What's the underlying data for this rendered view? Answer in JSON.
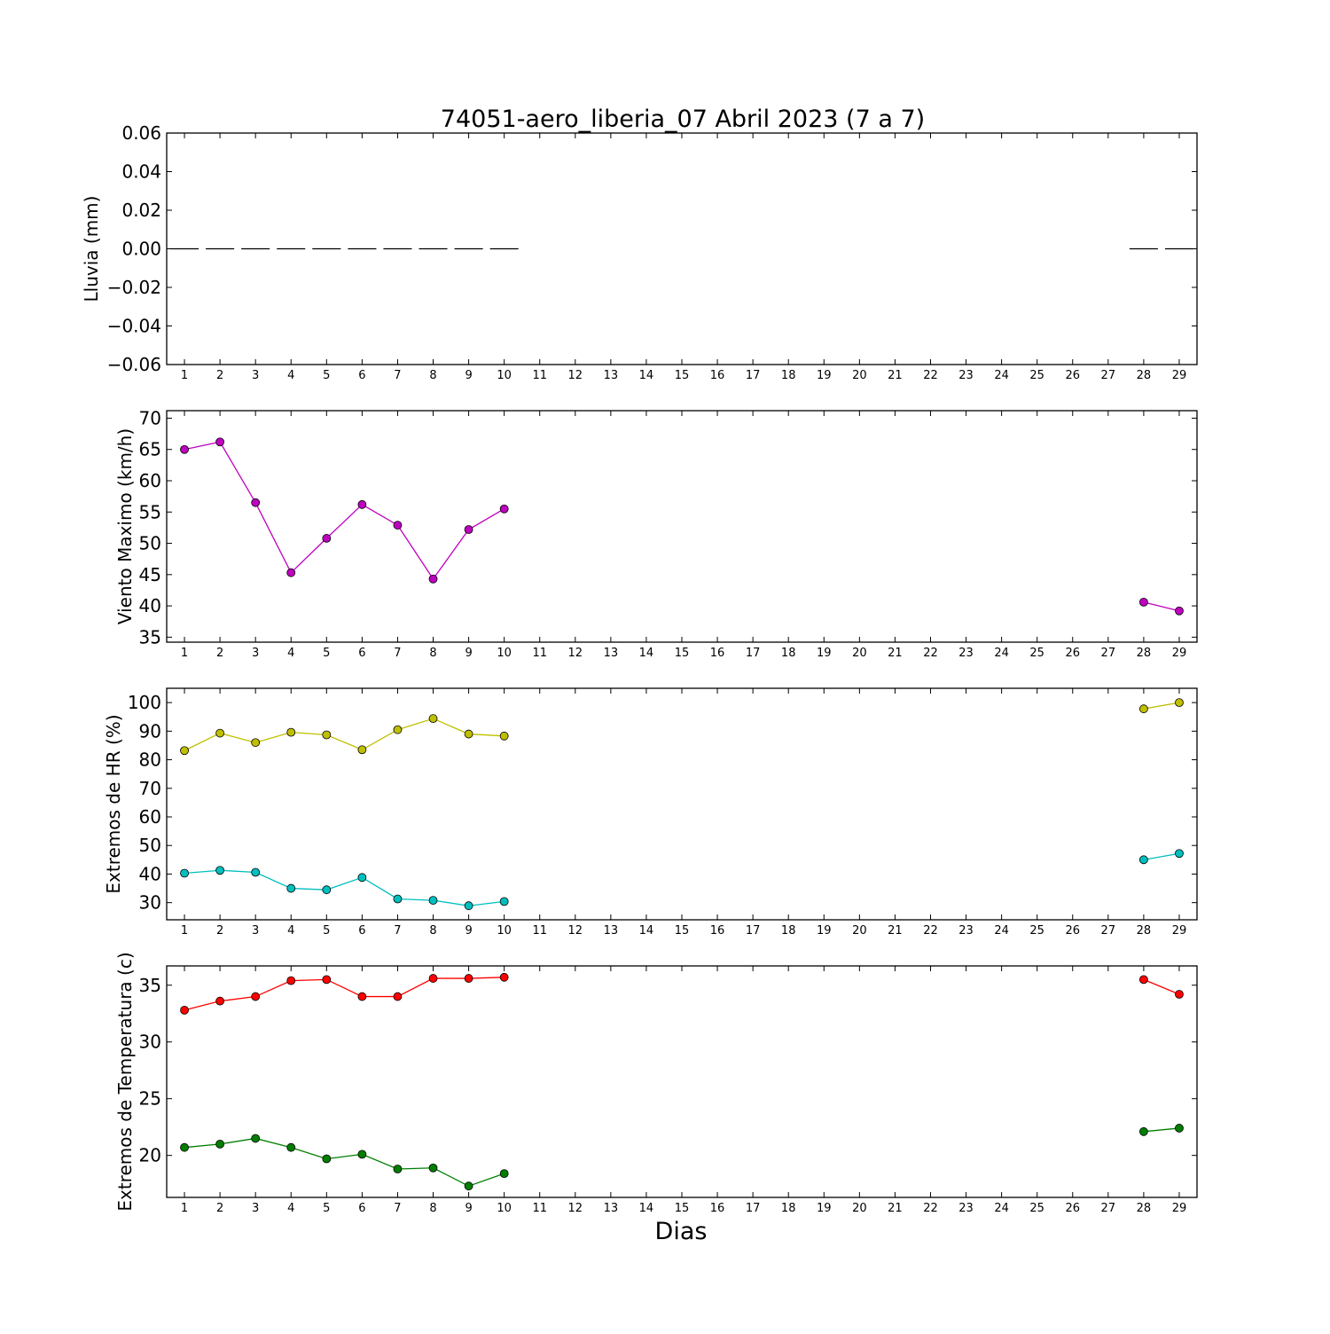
{
  "figure": {
    "title": "74051-aero_liberia_07 Abril 2023  (7 a 7)",
    "xlabel": "Dias"
  },
  "chart_data": [
    {
      "type": "bar",
      "name": "lluvia",
      "ylabel": "Lluvia (mm)",
      "ylim": [
        -0.06,
        0.06
      ],
      "yticks": [
        0.06,
        0.04,
        0.02,
        0.0,
        -0.02,
        -0.04,
        -0.06
      ],
      "ytick_labels": [
        "0.06",
        "0.04",
        "0.02",
        "0.00",
        "−0.02",
        "−0.04",
        "−0.06"
      ],
      "xlim": [
        0.5,
        29.5
      ],
      "xticks": [
        1,
        2,
        3,
        4,
        5,
        6,
        7,
        8,
        9,
        10,
        11,
        12,
        13,
        14,
        15,
        16,
        17,
        18,
        19,
        20,
        21,
        22,
        23,
        24,
        25,
        26,
        27,
        28,
        29
      ],
      "bar_width": 0.8,
      "series": [
        {
          "color": "#000000",
          "x": [
            1,
            2,
            3,
            4,
            5,
            6,
            7,
            8,
            9,
            10,
            28,
            29
          ],
          "values": [
            0,
            0,
            0,
            0,
            0,
            0,
            0,
            0,
            0,
            0,
            0,
            0
          ]
        }
      ]
    },
    {
      "type": "line",
      "name": "viento",
      "ylabel": "Viento Maximo (km/h)",
      "ylim": [
        34.2,
        71.2
      ],
      "yticks": [
        70,
        65,
        60,
        55,
        50,
        45,
        40,
        35
      ],
      "ytick_labels": [
        "70",
        "65",
        "60",
        "55",
        "50",
        "45",
        "40",
        "35"
      ],
      "xlim": [
        0.5,
        29.5
      ],
      "xticks": [
        1,
        2,
        3,
        4,
        5,
        6,
        7,
        8,
        9,
        10,
        11,
        12,
        13,
        14,
        15,
        16,
        17,
        18,
        19,
        20,
        21,
        22,
        23,
        24,
        25,
        26,
        27,
        28,
        29
      ],
      "series": [
        {
          "color": "#bf00bf",
          "x": [
            1,
            2,
            3,
            4,
            5,
            6,
            7,
            8,
            9,
            10,
            null,
            28,
            29
          ],
          "values": [
            65.0,
            66.2,
            56.5,
            45.3,
            50.8,
            56.2,
            52.9,
            44.3,
            52.2,
            55.5,
            null,
            40.6,
            39.2
          ]
        }
      ]
    },
    {
      "type": "line",
      "name": "humedad",
      "ylabel": "Extremos de HR (%)",
      "ylim": [
        24.0,
        105.0
      ],
      "yticks": [
        100,
        90,
        80,
        70,
        60,
        50,
        40,
        30
      ],
      "ytick_labels": [
        "100",
        "90",
        "80",
        "70",
        "60",
        "50",
        "40",
        "30"
      ],
      "xlim": [
        0.5,
        29.5
      ],
      "xticks": [
        1,
        2,
        3,
        4,
        5,
        6,
        7,
        8,
        9,
        10,
        11,
        12,
        13,
        14,
        15,
        16,
        17,
        18,
        19,
        20,
        21,
        22,
        23,
        24,
        25,
        26,
        27,
        28,
        29
      ],
      "series": [
        {
          "color": "#bfbf00",
          "x": [
            1,
            2,
            3,
            4,
            5,
            6,
            7,
            8,
            9,
            10,
            null,
            28,
            29
          ],
          "values": [
            83.2,
            89.3,
            86.0,
            89.6,
            88.7,
            83.5,
            90.5,
            94.4,
            89.0,
            88.3,
            null,
            97.8,
            100.0
          ]
        },
        {
          "color": "#00bfbf",
          "x": [
            1,
            2,
            3,
            4,
            5,
            6,
            7,
            8,
            9,
            10,
            null,
            28,
            29
          ],
          "values": [
            40.3,
            41.3,
            40.6,
            35.0,
            34.5,
            38.8,
            31.3,
            30.8,
            28.9,
            30.4,
            null,
            45.0,
            47.2
          ]
        }
      ]
    },
    {
      "type": "line",
      "name": "temperatura",
      "ylabel": "Extremos de Temperatura (c)",
      "ylim": [
        16.3,
        36.7
      ],
      "yticks": [
        35,
        30,
        25,
        20
      ],
      "ytick_labels": [
        "35",
        "30",
        "25",
        "20"
      ],
      "xlim": [
        0.5,
        29.5
      ],
      "xticks": [
        1,
        2,
        3,
        4,
        5,
        6,
        7,
        8,
        9,
        10,
        11,
        12,
        13,
        14,
        15,
        16,
        17,
        18,
        19,
        20,
        21,
        22,
        23,
        24,
        25,
        26,
        27,
        28,
        29
      ],
      "series": [
        {
          "color": "#ff0000",
          "x": [
            1,
            2,
            3,
            4,
            5,
            6,
            7,
            8,
            9,
            10,
            null,
            28,
            29
          ],
          "values": [
            32.8,
            33.6,
            34.0,
            35.4,
            35.5,
            34.0,
            34.0,
            35.6,
            35.6,
            35.7,
            null,
            35.5,
            34.2
          ]
        },
        {
          "color": "#007f00",
          "x": [
            1,
            2,
            3,
            4,
            5,
            6,
            7,
            8,
            9,
            10,
            null,
            28,
            29
          ],
          "values": [
            20.7,
            21.0,
            21.5,
            20.7,
            19.7,
            20.1,
            18.8,
            18.9,
            17.3,
            18.4,
            null,
            22.1,
            22.4
          ]
        }
      ]
    }
  ]
}
